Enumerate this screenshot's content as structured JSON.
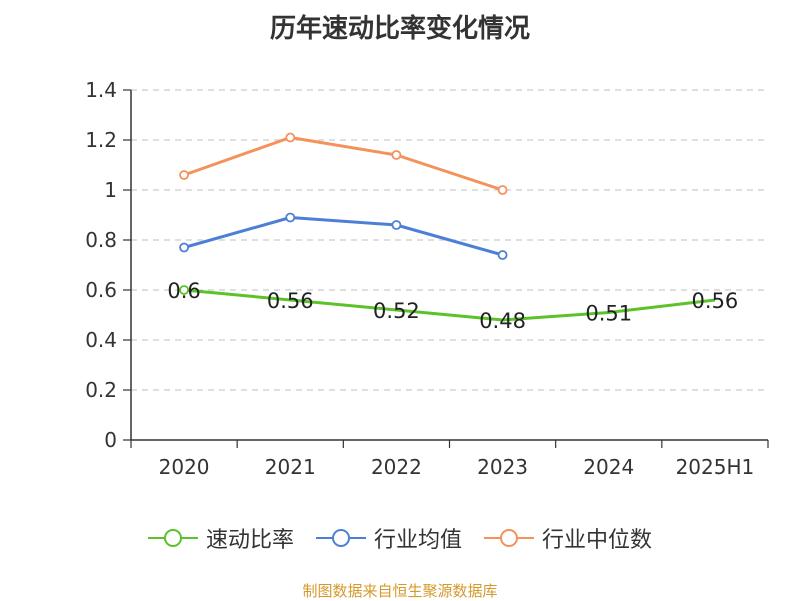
{
  "chart_data": {
    "type": "line",
    "title": "历年速动比率变化情况",
    "categories": [
      "2020",
      "2021",
      "2022",
      "2023",
      "2024",
      "2025H1"
    ],
    "ylim": [
      0,
      1.4
    ],
    "yticks": [
      "0",
      "0.2",
      "0.4",
      "0.6",
      "0.8",
      "1",
      "1.2",
      "1.4"
    ],
    "grid": true,
    "legend_position": "bottom",
    "series": [
      {
        "name": "速动比率",
        "color": "#5cc22a",
        "values": [
          0.6,
          0.56,
          0.52,
          0.48,
          0.51,
          0.56
        ],
        "labels": [
          "0.6",
          "0.56",
          "0.52",
          "0.48",
          "0.51",
          "0.56"
        ],
        "markers_from": 0,
        "markers_to": 0
      },
      {
        "name": "行业均值",
        "color": "#4e7fd6",
        "values": [
          0.77,
          0.89,
          0.86,
          0.74,
          null,
          null
        ]
      },
      {
        "name": "行业中位数",
        "color": "#f5915a",
        "values": [
          1.06,
          1.21,
          1.14,
          1.0,
          null,
          null
        ]
      }
    ]
  },
  "legend": {
    "items": [
      "速动比率",
      "行业均值",
      "行业中位数"
    ]
  },
  "source_text": "制图数据来自恒生聚源数据库"
}
